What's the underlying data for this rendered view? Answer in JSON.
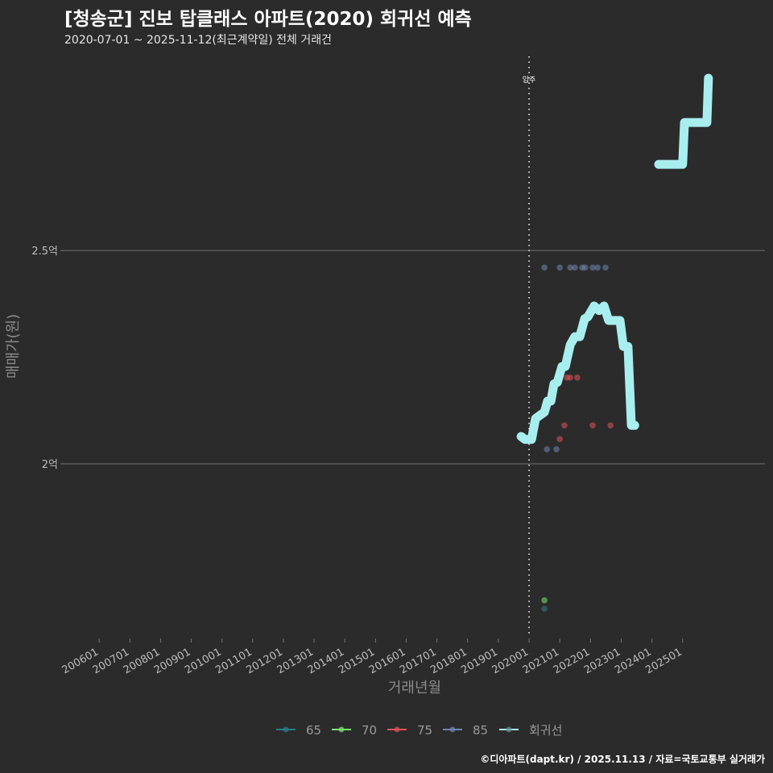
{
  "title": "[청송군] 진보 탑클래스 아파트(2020) 회귀선 예측",
  "subtitle": "2020-07-01 ~ 2025-11-12(최근계약일) 전체 거래건",
  "caption": "©디아파트(dapt.kr) / 2025.11.13 / 자료=국토교통부 실거래가",
  "colors": {
    "65": "#2a7f86",
    "70": "#7be86f",
    "75": "#e0535a",
    "85": "#6f86b0",
    "line": "#a8eeee",
    "bg": "#2b2b2c"
  },
  "chart_data": {
    "type": "scatter",
    "xlabel": "거래년월",
    "ylabel": "매매가(원)",
    "xlim": [
      2004.87,
      2027.68
    ],
    "ylim": [
      15960,
      29740
    ],
    "y_unit": "만원",
    "yticks": [
      {
        "value": 20000,
        "label": "2억"
      },
      {
        "value": 25000,
        "label": "2.5억"
      }
    ],
    "xticks": [
      {
        "value": 2006,
        "label": "200601"
      },
      {
        "value": 2007,
        "label": "200701"
      },
      {
        "value": 2008,
        "label": "200801"
      },
      {
        "value": 2009,
        "label": "200901"
      },
      {
        "value": 2010,
        "label": "201001"
      },
      {
        "value": 2011,
        "label": "201101"
      },
      {
        "value": 2012,
        "label": "201201"
      },
      {
        "value": 2013,
        "label": "201301"
      },
      {
        "value": 2014,
        "label": "201401"
      },
      {
        "value": 2015,
        "label": "201501"
      },
      {
        "value": 2016,
        "label": "201601"
      },
      {
        "value": 2017,
        "label": "201701"
      },
      {
        "value": 2018,
        "label": "201801"
      },
      {
        "value": 2019,
        "label": "201901"
      },
      {
        "value": 2020,
        "label": "202001"
      },
      {
        "value": 2021,
        "label": "202101"
      },
      {
        "value": 2022,
        "label": "202201"
      },
      {
        "value": 2023,
        "label": "202301"
      },
      {
        "value": 2024,
        "label": "202401"
      },
      {
        "value": 2025,
        "label": "202501"
      }
    ],
    "annotation": {
      "x": 2020,
      "label": "입주"
    },
    "series": [
      {
        "name": "65",
        "points": [
          [
            2020.5,
            16600
          ]
        ]
      },
      {
        "name": "70",
        "points": [
          [
            2020.5,
            16800
          ]
        ]
      },
      {
        "name": "75",
        "points": [
          [
            2021.0,
            20580
          ],
          [
            2021.15,
            20900
          ],
          [
            2021.23,
            22020
          ],
          [
            2021.34,
            22020
          ],
          [
            2021.57,
            22020
          ],
          [
            2022.07,
            20900
          ],
          [
            2022.65,
            20900
          ]
        ]
      },
      {
        "name": "85",
        "points": [
          [
            2020.5,
            24600
          ],
          [
            2021.0,
            24600
          ],
          [
            2021.34,
            24600
          ],
          [
            2021.49,
            24600
          ],
          [
            2021.73,
            24600
          ],
          [
            2021.83,
            24600
          ],
          [
            2022.07,
            24600
          ],
          [
            2022.23,
            24600
          ],
          [
            2022.49,
            24600
          ],
          [
            2020.58,
            20340
          ],
          [
            2020.89,
            20340
          ]
        ]
      },
      {
        "name": "회귀선",
        "type": "line",
        "segments": [
          [
            [
              2019.74,
              20640
            ],
            [
              2019.87,
              20570
            ],
            [
              2020.08,
              20570
            ],
            [
              2020.21,
              21060
            ],
            [
              2020.34,
              21130
            ],
            [
              2020.5,
              21210
            ],
            [
              2020.6,
              21470
            ],
            [
              2020.71,
              21470
            ],
            [
              2020.81,
              21870
            ],
            [
              2020.92,
              21910
            ],
            [
              2021.07,
              22280
            ],
            [
              2021.18,
              22280
            ],
            [
              2021.34,
              22790
            ],
            [
              2021.49,
              22980
            ],
            [
              2021.65,
              22980
            ],
            [
              2021.81,
              23400
            ],
            [
              2021.91,
              23440
            ],
            [
              2022.12,
              23700
            ],
            [
              2022.28,
              23590
            ],
            [
              2022.44,
              23700
            ],
            [
              2022.59,
              23360
            ],
            [
              2022.75,
              23360
            ],
            [
              2022.91,
              23360
            ],
            [
              2022.96,
              23360
            ],
            [
              2023.07,
              22750
            ],
            [
              2023.22,
              22750
            ],
            [
              2023.33,
              20900
            ],
            [
              2023.44,
              20900
            ]
          ],
          [
            [
              2024.22,
              27020
            ],
            [
              2025.0,
              27020
            ],
            [
              2025.06,
              28000
            ],
            [
              2025.79,
              28000
            ],
            [
              2025.84,
              29040
            ]
          ]
        ]
      }
    ],
    "legend": {
      "position": "bottom",
      "entries": [
        "65",
        "70",
        "75",
        "85",
        "회귀선"
      ]
    }
  }
}
